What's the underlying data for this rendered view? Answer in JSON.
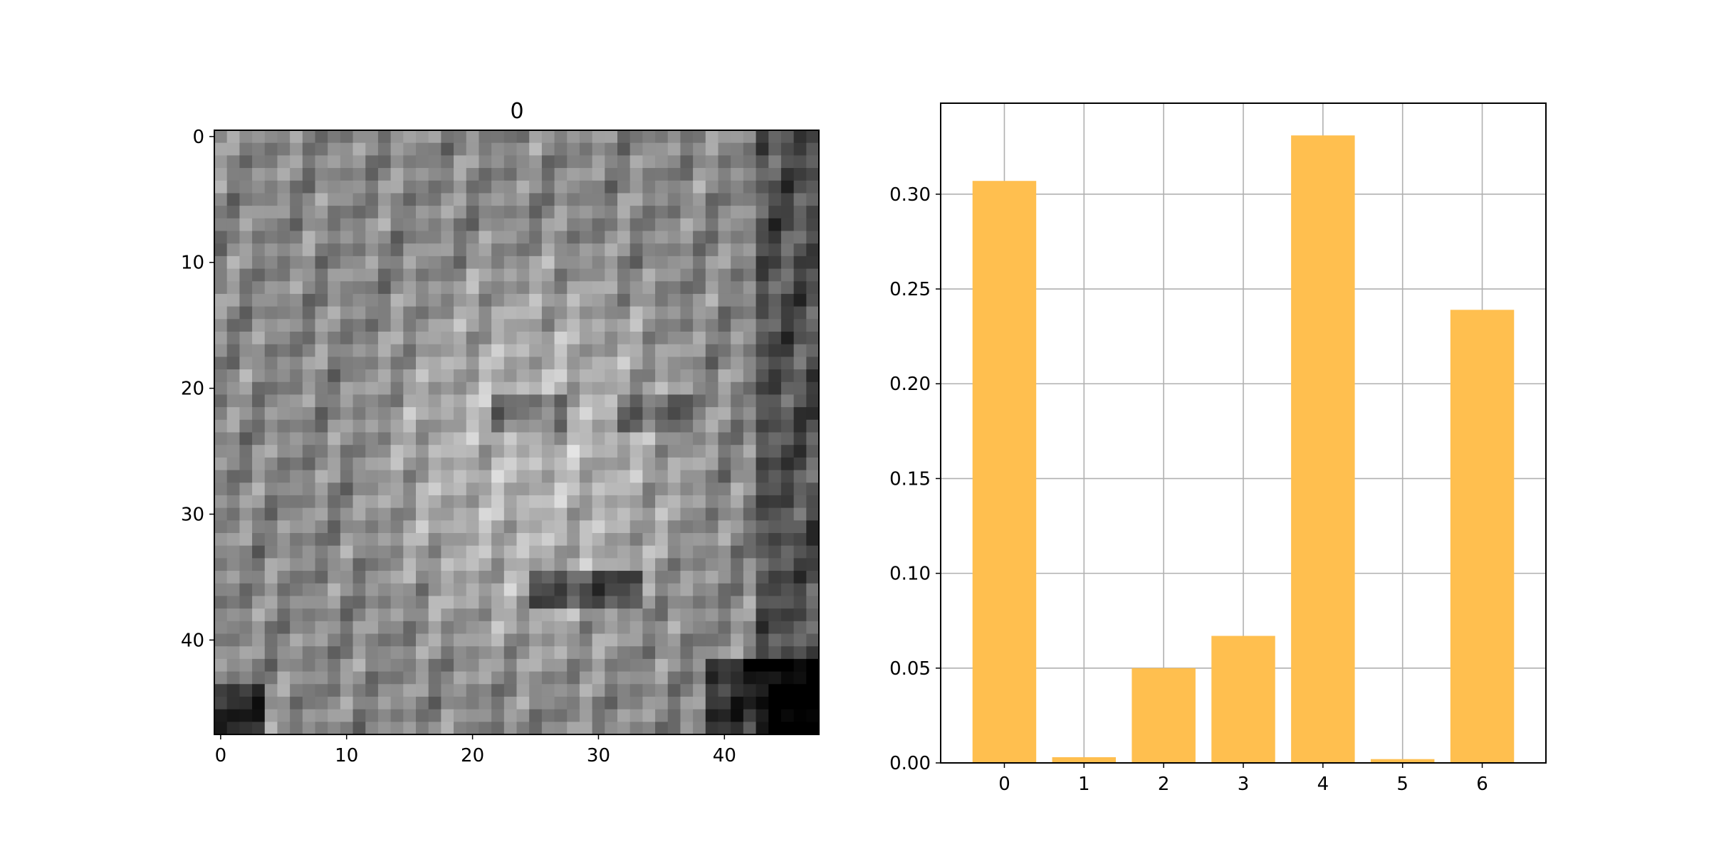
{
  "chart_data": [
    {
      "type": "image",
      "title": "0",
      "colormap": "gray",
      "image_size": [
        48,
        48
      ],
      "x_ticks": [
        "0",
        "10",
        "20",
        "30",
        "40"
      ],
      "y_ticks": [
        "0",
        "10",
        "20",
        "30",
        "40"
      ],
      "xlim": [
        -0.5,
        47.5
      ],
      "ylim": [
        47.5,
        -0.5
      ]
    },
    {
      "type": "bar",
      "title": "",
      "xlabel": "",
      "ylabel": "",
      "categories": [
        "0",
        "1",
        "2",
        "3",
        "4",
        "5",
        "6"
      ],
      "values": [
        0.307,
        0.003,
        0.05,
        0.067,
        0.331,
        0.002,
        0.239
      ],
      "ylim": [
        0,
        0.348
      ],
      "y_ticks": [
        "0.00",
        "0.05",
        "0.10",
        "0.15",
        "0.20",
        "0.25",
        "0.30"
      ],
      "grid": true,
      "color": "#ffbf4f"
    }
  ]
}
